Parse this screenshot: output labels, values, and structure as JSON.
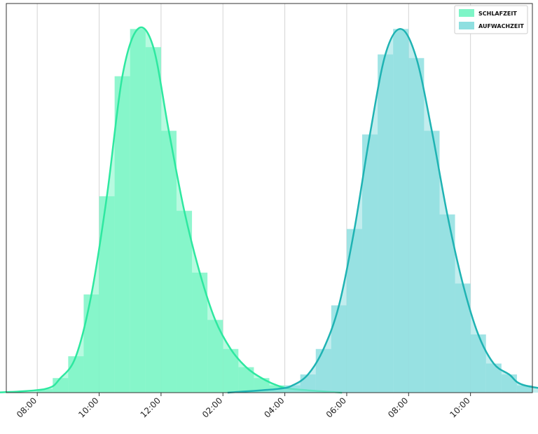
{
  "chart_data": {
    "type": "area",
    "title": "",
    "xlabel": "",
    "ylabel": "",
    "x_ticks": [
      "08:00",
      "10:00",
      "12:00",
      "02:00",
      "04:00",
      "06:00",
      "08:00",
      "10:00"
    ],
    "x_range_hours": [
      7,
      24
    ],
    "y_range": [
      0,
      1.07
    ],
    "grid": "vertical",
    "legend_position": "top-right",
    "series": [
      {
        "name": "SCHLAFZEIT",
        "color": "#2ee8a0",
        "fill": "#7ef5c7",
        "hist_x": [
          8.25,
          8.75,
          9.25,
          9.75,
          10.25,
          10.75,
          11.25,
          11.75,
          12.25,
          12.75,
          13.25,
          13.75,
          14.25,
          14.75,
          15.25,
          15.75,
          16.25
        ],
        "hist_y": [
          0.01,
          0.04,
          0.1,
          0.27,
          0.54,
          0.87,
          1.0,
          0.95,
          0.72,
          0.5,
          0.33,
          0.2,
          0.12,
          0.07,
          0.04,
          0.02,
          0.01
        ],
        "curve_peak_x": 11.08,
        "curve_peak_y": 1.0
      },
      {
        "name": "AUFWACHZEIT",
        "color": "#1fb3b3",
        "fill": "#8fdfe0",
        "hist_x": [
          15.75,
          16.25,
          16.75,
          17.25,
          17.75,
          18.25,
          18.75,
          19.25,
          19.75,
          20.25,
          20.75,
          21.25,
          21.75,
          22.25,
          22.75,
          23.25,
          23.75
        ],
        "hist_y": [
          0.01,
          0.02,
          0.05,
          0.12,
          0.24,
          0.45,
          0.71,
          0.93,
          1.0,
          0.92,
          0.72,
          0.49,
          0.3,
          0.16,
          0.08,
          0.05,
          0.02
        ],
        "curve_peak_x": 19.98,
        "curve_peak_y": 1.0
      }
    ]
  }
}
